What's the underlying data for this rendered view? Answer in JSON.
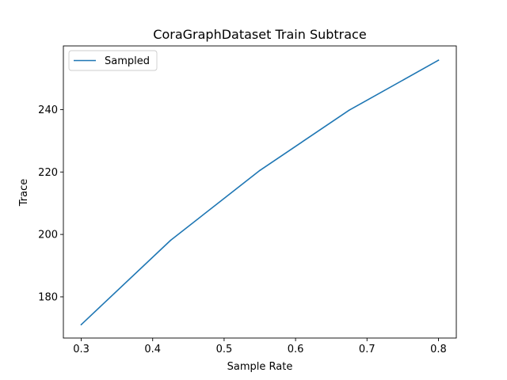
{
  "chart_data": {
    "type": "line",
    "title": "CoraGraphDataset Train Subtrace",
    "xlabel": "Sample Rate",
    "ylabel": "Trace",
    "xlim": [
      0.275,
      0.825
    ],
    "ylim": [
      166.8,
      260.4
    ],
    "xticks": [
      0.3,
      0.4,
      0.5,
      0.6,
      0.7,
      0.8
    ],
    "xtick_labels": [
      "0.3",
      "0.4",
      "0.5",
      "0.6",
      "0.7",
      "0.8"
    ],
    "yticks": [
      180,
      200,
      220,
      240
    ],
    "ytick_labels": [
      "180",
      "200",
      "220",
      "240"
    ],
    "grid": false,
    "legend_position": "upper-left",
    "series": [
      {
        "name": "Sampled",
        "color": "#1f77b4",
        "x": [
          0.3,
          0.425,
          0.55,
          0.675,
          0.8
        ],
        "y": [
          171.1,
          198.1,
          220.5,
          239.8,
          255.8
        ]
      }
    ]
  }
}
